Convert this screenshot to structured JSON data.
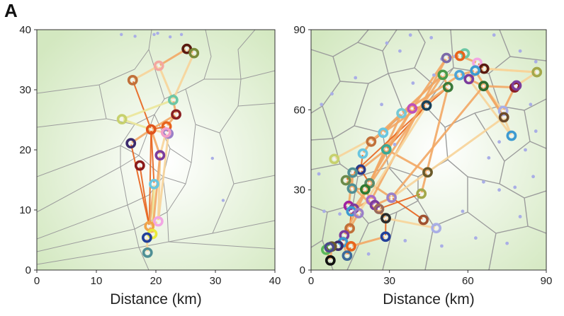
{
  "panel_label": "A",
  "colors": {
    "background_center": "#ffffff",
    "background_edge": "#d3e8c0",
    "voronoi_edge": "#9c9c9c",
    "passive_site": "#a9aee6",
    "link_strong": "#e8631c",
    "link_medium": "#f3a865",
    "link_weak": "#f8d49a",
    "link_faint": "#ece79a"
  },
  "chart_data": [
    {
      "type": "scatter",
      "description_of_marks": "Voronoi tessellation of sites with colored ring nodes connected by orange links",
      "xlabel": "Distance (km)",
      "ylabel": "",
      "xlim": [
        0,
        40
      ],
      "ylim": [
        0,
        40
      ],
      "xticks": [
        0,
        10,
        20,
        30,
        40
      ],
      "yticks": [
        0,
        10,
        20,
        30,
        40
      ],
      "grid": false,
      "passive_sites": [
        [
          14.2,
          39.2
        ],
        [
          16.5,
          38.9
        ],
        [
          19.7,
          39.2
        ],
        [
          22.4,
          38.8
        ],
        [
          24.3,
          39.2
        ],
        [
          29.5,
          18.6
        ],
        [
          31.3,
          11.6
        ],
        [
          20.3,
          39.4
        ]
      ],
      "nodes": [
        {
          "x": 25.2,
          "y": 36.8,
          "color": "#5a1a10"
        },
        {
          "x": 26.4,
          "y": 36.1,
          "color": "#7a8a3a"
        },
        {
          "x": 16.1,
          "y": 31.6,
          "color": "#c0703a"
        },
        {
          "x": 20.5,
          "y": 34.0,
          "color": "#f4a7a0"
        },
        {
          "x": 22.9,
          "y": 28.3,
          "color": "#6cc7a5"
        },
        {
          "x": 14.3,
          "y": 25.1,
          "color": "#c7d16e"
        },
        {
          "x": 23.4,
          "y": 25.9,
          "color": "#8a1f22"
        },
        {
          "x": 21.8,
          "y": 23.9,
          "color": "#e8631c"
        },
        {
          "x": 19.2,
          "y": 23.4,
          "color": "#e0541c"
        },
        {
          "x": 22.1,
          "y": 22.7,
          "color": "#9b80c8"
        },
        {
          "x": 21.7,
          "y": 22.9,
          "color": "#f3a0c8"
        },
        {
          "x": 15.8,
          "y": 21.1,
          "color": "#3c2a6d"
        },
        {
          "x": 20.7,
          "y": 19.1,
          "color": "#7c3c9c"
        },
        {
          "x": 17.3,
          "y": 17.4,
          "color": "#8a1a1a"
        },
        {
          "x": 19.7,
          "y": 14.3,
          "color": "#6ac6e0"
        },
        {
          "x": 20.4,
          "y": 8.1,
          "color": "#f2a6e3"
        },
        {
          "x": 18.9,
          "y": 7.3,
          "color": "#f0a44a"
        },
        {
          "x": 19.4,
          "y": 6.0,
          "color": "#e9e83c"
        },
        {
          "x": 18.5,
          "y": 5.4,
          "color": "#23409a"
        },
        {
          "x": 18.6,
          "y": 2.9,
          "color": "#4f8f95"
        }
      ],
      "links": [
        [
          0,
          1,
          "#f3a865"
        ],
        [
          0,
          3,
          "#f3a865"
        ],
        [
          1,
          4,
          "#f8d49a"
        ],
        [
          3,
          4,
          "#f8d49a"
        ],
        [
          2,
          3,
          "#f8d49a"
        ],
        [
          2,
          8,
          "#e8631c"
        ],
        [
          5,
          4,
          "#ece79a"
        ],
        [
          4,
          6,
          "#f3a865"
        ],
        [
          6,
          7,
          "#f3a865"
        ],
        [
          7,
          8,
          "#e8631c"
        ],
        [
          8,
          9,
          "#f8d49a"
        ],
        [
          8,
          12,
          "#f3a865"
        ],
        [
          11,
          8,
          "#f3a865"
        ],
        [
          11,
          16,
          "#e8631c"
        ],
        [
          8,
          14,
          "#e8631c"
        ],
        [
          8,
          16,
          "#e8631c"
        ],
        [
          9,
          10,
          "#f8d49a"
        ],
        [
          10,
          12,
          "#f8d49a"
        ],
        [
          12,
          15,
          "#f8d49a"
        ],
        [
          13,
          16,
          "#e8631c"
        ],
        [
          14,
          16,
          "#f3a865"
        ],
        [
          14,
          17,
          "#ece79a"
        ],
        [
          15,
          16,
          "#f8d49a"
        ],
        [
          16,
          17,
          "#f3a865"
        ],
        [
          17,
          18,
          "#f3a865"
        ],
        [
          18,
          19,
          "#f8d49a"
        ],
        [
          5,
          8,
          "#ece79a"
        ],
        [
          6,
          8,
          "#f3a865"
        ],
        [
          9,
          15,
          "#f8d49a"
        ],
        [
          12,
          17,
          "#f3a865"
        ]
      ]
    },
    {
      "type": "scatter",
      "description_of_marks": "Voronoi tessellation of sites with colored ring nodes connected by orange links",
      "xlabel": "Distance (km)",
      "ylabel": "",
      "xlim": [
        0,
        90
      ],
      "ylim": [
        0,
        90
      ],
      "xticks": [
        0,
        30,
        60,
        90
      ],
      "yticks": [
        0,
        30,
        60,
        90
      ],
      "grid": false,
      "passive_sites": [
        [
          29,
          85
        ],
        [
          34,
          82
        ],
        [
          38,
          88
        ],
        [
          46,
          87
        ],
        [
          50,
          79
        ],
        [
          55,
          80
        ],
        [
          70,
          88
        ],
        [
          80,
          82
        ],
        [
          86,
          78
        ],
        [
          4,
          62
        ],
        [
          8,
          66
        ],
        [
          17,
          72
        ],
        [
          27,
          62
        ],
        [
          32,
          47
        ],
        [
          39,
          70
        ],
        [
          47,
          73
        ],
        [
          58,
          22
        ],
        [
          66,
          33
        ],
        [
          72,
          30
        ],
        [
          78,
          31
        ],
        [
          82,
          45
        ],
        [
          86,
          52
        ],
        [
          84,
          62
        ],
        [
          63,
          12
        ],
        [
          75,
          10
        ],
        [
          80,
          20
        ],
        [
          85,
          35
        ],
        [
          3,
          36
        ],
        [
          5,
          22
        ],
        [
          9,
          10
        ],
        [
          11,
          21
        ],
        [
          22,
          6
        ],
        [
          36,
          11
        ],
        [
          50,
          9
        ],
        [
          68,
          42
        ],
        [
          72,
          48
        ]
      ],
      "nodes": [
        {
          "x": 51.8,
          "y": 79.4,
          "color": "#7c6aa8"
        },
        {
          "x": 58.8,
          "y": 81.1,
          "color": "#6cc7a5"
        },
        {
          "x": 57.0,
          "y": 80.2,
          "color": "#e8631c"
        },
        {
          "x": 63.6,
          "y": 77.6,
          "color": "#f2a6e3"
        },
        {
          "x": 66.2,
          "y": 75.4,
          "color": "#5a1a10"
        },
        {
          "x": 62.8,
          "y": 74.7,
          "color": "#3d9ad1"
        },
        {
          "x": 56.8,
          "y": 73.0,
          "color": "#4ba3d6"
        },
        {
          "x": 60.4,
          "y": 71.5,
          "color": "#7c3c9c"
        },
        {
          "x": 50.4,
          "y": 73.1,
          "color": "#4a9a4a"
        },
        {
          "x": 86.4,
          "y": 74.1,
          "color": "#a3a84a"
        },
        {
          "x": 77.9,
          "y": 68.4,
          "color": "#8a1f22"
        },
        {
          "x": 78.6,
          "y": 69.1,
          "color": "#7c3c9c"
        },
        {
          "x": 52.4,
          "y": 68.5,
          "color": "#3a7a3a"
        },
        {
          "x": 66.0,
          "y": 68.9,
          "color": "#2f6b2f"
        },
        {
          "x": 44.2,
          "y": 61.6,
          "color": "#17405a"
        },
        {
          "x": 73.5,
          "y": 59.6,
          "color": "#a9aee6"
        },
        {
          "x": 73.8,
          "y": 57.2,
          "color": "#6b4a2a"
        },
        {
          "x": 34.6,
          "y": 58.7,
          "color": "#74c8d5"
        },
        {
          "x": 38.7,
          "y": 60.5,
          "color": "#c050b8"
        },
        {
          "x": 27.6,
          "y": 51.4,
          "color": "#6ac6e0"
        },
        {
          "x": 76.7,
          "y": 50.3,
          "color": "#3d9ad1"
        },
        {
          "x": 23.0,
          "y": 48.1,
          "color": "#c0703a"
        },
        {
          "x": 28.8,
          "y": 45.2,
          "color": "#3aa895"
        },
        {
          "x": 19.8,
          "y": 43.6,
          "color": "#6ac6e0"
        },
        {
          "x": 8.9,
          "y": 41.6,
          "color": "#c7d16e"
        },
        {
          "x": 19.0,
          "y": 37.6,
          "color": "#2a3a8a"
        },
        {
          "x": 15.9,
          "y": 36.5,
          "color": "#4f8f95"
        },
        {
          "x": 44.6,
          "y": 36.6,
          "color": "#6b5a2a"
        },
        {
          "x": 13.3,
          "y": 33.6,
          "color": "#6b8a4a"
        },
        {
          "x": 22.4,
          "y": 32.5,
          "color": "#5a8a6a"
        },
        {
          "x": 15.7,
          "y": 30.5,
          "color": "#4f8f95"
        },
        {
          "x": 20.7,
          "y": 30.2,
          "color": "#2f7a2f"
        },
        {
          "x": 42.2,
          "y": 28.6,
          "color": "#a3a84a"
        },
        {
          "x": 30.8,
          "y": 27.1,
          "color": "#9b80c8"
        },
        {
          "x": 23.0,
          "y": 26.2,
          "color": "#a86ac8"
        },
        {
          "x": 24.4,
          "y": 24.3,
          "color": "#7c3c9c"
        },
        {
          "x": 14.4,
          "y": 24.0,
          "color": "#a020a0"
        },
        {
          "x": 16.4,
          "y": 23.0,
          "color": "#7c3c9c"
        },
        {
          "x": 26.0,
          "y": 22.9,
          "color": "#9a6a5a"
        },
        {
          "x": 15.4,
          "y": 22.0,
          "color": "#3d9ad1"
        },
        {
          "x": 18.2,
          "y": 21.3,
          "color": "#9b80c8"
        },
        {
          "x": 28.6,
          "y": 19.4,
          "color": "#2a2a2a"
        },
        {
          "x": 43.0,
          "y": 18.8,
          "color": "#a05030"
        },
        {
          "x": 47.9,
          "y": 15.7,
          "color": "#a9aee6"
        },
        {
          "x": 14.8,
          "y": 15.6,
          "color": "#c0703a"
        },
        {
          "x": 28.5,
          "y": 12.5,
          "color": "#23409a"
        },
        {
          "x": 12.7,
          "y": 13.0,
          "color": "#7c3c9c"
        },
        {
          "x": 12.2,
          "y": 10.4,
          "color": "#3d9ad1"
        },
        {
          "x": 15.3,
          "y": 8.9,
          "color": "#e8631c"
        },
        {
          "x": 10.4,
          "y": 9.1,
          "color": "#3c2a6d"
        },
        {
          "x": 7.9,
          "y": 8.8,
          "color": "#6b5a2a"
        },
        {
          "x": 5.8,
          "y": 7.6,
          "color": "#5ab85a"
        },
        {
          "x": 7.0,
          "y": 8.5,
          "color": "#4a4a8a"
        },
        {
          "x": 13.8,
          "y": 5.4,
          "color": "#3d6a9a"
        },
        {
          "x": 7.4,
          "y": 3.6,
          "color": "#111111"
        }
      ],
      "links": [
        [
          0,
          2,
          "#f3a865"
        ],
        [
          1,
          2,
          "#e8631c"
        ],
        [
          2,
          3,
          "#f3a865"
        ],
        [
          3,
          4,
          "#e8631c"
        ],
        [
          4,
          7,
          "#f3a865"
        ],
        [
          5,
          6,
          "#f3a865"
        ],
        [
          6,
          8,
          "#f8d49a"
        ],
        [
          7,
          13,
          "#f3a865"
        ],
        [
          8,
          12,
          "#f3a865"
        ],
        [
          4,
          9,
          "#f8d49a"
        ],
        [
          9,
          11,
          "#f8d49a"
        ],
        [
          10,
          11,
          "#f3a865"
        ],
        [
          10,
          13,
          "#f3a865"
        ],
        [
          12,
          14,
          "#e8631c"
        ],
        [
          13,
          15,
          "#f8d49a"
        ],
        [
          14,
          17,
          "#f3a865"
        ],
        [
          14,
          18,
          "#e8631c"
        ],
        [
          17,
          19,
          "#f3a865"
        ],
        [
          18,
          22,
          "#f3a865"
        ],
        [
          19,
          21,
          "#e8631c"
        ],
        [
          21,
          23,
          "#f3a865"
        ],
        [
          22,
          25,
          "#f3a865"
        ],
        [
          23,
          25,
          "#e8631c"
        ],
        [
          24,
          19,
          "#f8d49a"
        ],
        [
          25,
          28,
          "#f3a865"
        ],
        [
          25,
          29,
          "#e8631c"
        ],
        [
          26,
          30,
          "#f3a865"
        ],
        [
          29,
          33,
          "#f3a865"
        ],
        [
          30,
          31,
          "#f3a865"
        ],
        [
          31,
          34,
          "#f3a865"
        ],
        [
          33,
          35,
          "#f3a865"
        ],
        [
          34,
          37,
          "#f3a865"
        ],
        [
          35,
          38,
          "#e8631c"
        ],
        [
          36,
          39,
          "#e8631c"
        ],
        [
          37,
          40,
          "#f3a865"
        ],
        [
          38,
          41,
          "#f3a865"
        ],
        [
          41,
          45,
          "#e8631c"
        ],
        [
          40,
          44,
          "#f3a865"
        ],
        [
          44,
          46,
          "#e8631c"
        ],
        [
          46,
          47,
          "#f3a865"
        ],
        [
          47,
          49,
          "#f3a865"
        ],
        [
          48,
          53,
          "#e8631c"
        ],
        [
          49,
          50,
          "#f3a865"
        ],
        [
          50,
          54,
          "#f3a865"
        ],
        [
          51,
          52,
          "#f8d49a"
        ],
        [
          27,
          22,
          "#f3a865"
        ],
        [
          27,
          33,
          "#f8d49a"
        ],
        [
          32,
          38,
          "#e8631c"
        ],
        [
          42,
          33,
          "#e8631c"
        ],
        [
          43,
          41,
          "#f8d49a"
        ],
        [
          20,
          16,
          "#f8d49a"
        ],
        [
          15,
          10,
          "#f3a865"
        ],
        [
          16,
          13,
          "#f3a865"
        ],
        [
          18,
          0,
          "#f3a865"
        ],
        [
          17,
          6,
          "#f3a865"
        ],
        [
          22,
          14,
          "#e8631c"
        ],
        [
          19,
          12,
          "#f3a865"
        ],
        [
          21,
          8,
          "#f3a865"
        ],
        [
          29,
          17,
          "#f3a865"
        ],
        [
          28,
          14,
          "#e8631c"
        ],
        [
          31,
          18,
          "#f3a865"
        ],
        [
          45,
          48,
          "#f3a865"
        ],
        [
          39,
          44,
          "#e8631c"
        ],
        [
          41,
          28,
          "#f3a865"
        ],
        [
          36,
          26,
          "#f3a865"
        ],
        [
          47,
          53,
          "#f3a865"
        ],
        [
          54,
          51,
          "#f3a865"
        ],
        [
          9,
          4,
          "#f8d49a"
        ],
        [
          20,
          7,
          "#f8d49a"
        ],
        [
          16,
          5,
          "#f3a865"
        ],
        [
          33,
          13,
          "#f3a865"
        ],
        [
          27,
          16,
          "#f8d49a"
        ],
        [
          32,
          12,
          "#f3a865"
        ],
        [
          34,
          0,
          "#f3a865"
        ],
        [
          37,
          8,
          "#f3a865"
        ],
        [
          40,
          14,
          "#f8d49a"
        ],
        [
          46,
          22,
          "#f3a865"
        ]
      ]
    }
  ]
}
